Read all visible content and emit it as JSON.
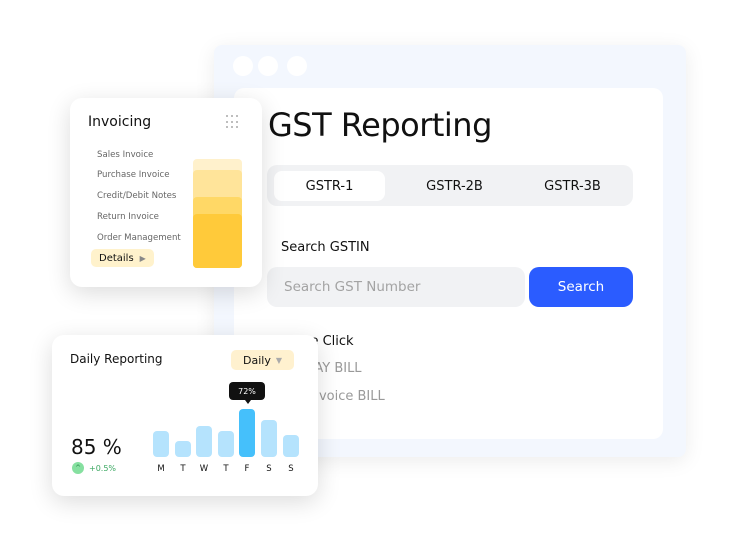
{
  "window": {
    "title": "GST Reporting",
    "tabs": [
      {
        "label": "GSTR-1",
        "active": true
      },
      {
        "label": "GSTR-2B"
      },
      {
        "label": "GSTR-3B"
      }
    ],
    "search_label": "Search GSTIN",
    "search_placeholder": "Search GST Number",
    "search_button": "Search",
    "one_click": "One Click",
    "links": [
      "EWAY BILL",
      "E-Invoice BILL"
    ],
    "accent": "#2b5cff"
  },
  "invoicing": {
    "title": "Invoicing",
    "items": [
      "Sales Invoice",
      "Purchase Invoice",
      "Credit/Debit Notes",
      "Return Invoice",
      "Order Management"
    ],
    "details_label": "Details",
    "accent": "#ffca3a"
  },
  "daily": {
    "title": "Daily Reporting",
    "period": "Daily",
    "value": "85 %",
    "change": "+0.5%",
    "days": [
      "M",
      "T",
      "W",
      "T",
      "F",
      "S",
      "S"
    ],
    "levels": [
      39,
      24,
      46,
      39,
      72,
      55,
      33
    ],
    "highlight_index": 4,
    "tooltip": "72%"
  }
}
